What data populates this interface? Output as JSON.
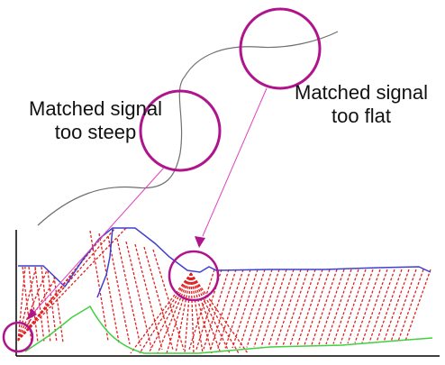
{
  "annotations": {
    "steep": {
      "line1": "Matched signal",
      "line2": "too steep"
    },
    "flat": {
      "line1": "Matched signal",
      "line2": "too flat"
    }
  },
  "colors": {
    "highlight_circle": "#b0148c",
    "pointer": "#e040c0",
    "wavefront_rays": "#e02020",
    "top_surface": "#4040d0",
    "bottom_surface": "#40d040",
    "signal_curve": "#707070",
    "axes": "#000000"
  }
}
